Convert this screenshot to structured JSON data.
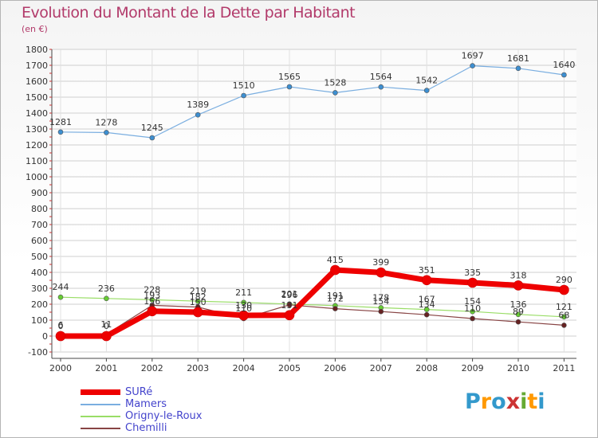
{
  "title": "Evolution du Montant de la Dette par Habitant",
  "subtitle": "(en €)",
  "logo": {
    "text": "Proxiti",
    "letters": [
      "P",
      "r",
      "o",
      "x",
      "i",
      "t",
      "i"
    ],
    "colors": [
      "#3399cc",
      "#ff9900",
      "#3399cc",
      "#cc3333",
      "#66aa33",
      "#ff9900",
      "#3399cc"
    ]
  },
  "chart_data": {
    "type": "line",
    "title": "Evolution du Montant de la Dette par Habitant",
    "subtitle": "(en €)",
    "xlabel": "",
    "ylabel": "",
    "x": [
      "2000",
      "2001",
      "2002",
      "2003",
      "2004",
      "2005",
      "2006",
      "2007",
      "2008",
      "2009",
      "2010",
      "2011"
    ],
    "ylim": [
      -100,
      1800
    ],
    "yticks": [
      -100,
      0,
      100,
      200,
      300,
      400,
      500,
      600,
      700,
      800,
      900,
      1000,
      1100,
      1200,
      1300,
      1400,
      1500,
      1600,
      1700,
      1800
    ],
    "grid": true,
    "legend_position": "bottom-left",
    "series": [
      {
        "name": "SURé",
        "color": "#ee0000",
        "width": 7,
        "marker": "#ee0000",
        "values": [
          0,
          0,
          156,
          150,
          130,
          131,
          415,
          399,
          351,
          335,
          318,
          290
        ],
        "labels": [
          "0",
          "0",
          "156",
          "150",
          "130",
          "131",
          "415",
          "399",
          "351",
          "335",
          "318",
          "290"
        ]
      },
      {
        "name": "Mamers",
        "color": "#7aaee0",
        "width": 1.2,
        "marker": "#3d8fd1",
        "values": [
          1281,
          1278,
          1245,
          1389,
          1510,
          1565,
          1528,
          1564,
          1542,
          1697,
          1681,
          1640
        ],
        "labels": [
          "1281",
          "1278",
          "1245",
          "1389",
          "1510",
          "1565",
          "1528",
          "1564",
          "1542",
          "1697",
          "1681",
          "1640"
        ]
      },
      {
        "name": "Origny-le-Roux",
        "color": "#99dd66",
        "width": 1.2,
        "marker": "#66cc33",
        "values": [
          244,
          236,
          228,
          219,
          211,
          201,
          191,
          178,
          167,
          154,
          136,
          121
        ],
        "labels": [
          "244",
          "236",
          "228",
          "219",
          "211",
          "201",
          "191",
          "178",
          "167",
          "154",
          "136",
          "121"
        ]
      },
      {
        "name": "Chemilli",
        "color": "#884444",
        "width": 1.2,
        "marker": "#662222",
        "values": [
          6,
          11,
          193,
          182,
          110,
          196,
          172,
          154,
          134,
          110,
          89,
          68
        ],
        "labels": [
          "6",
          "11",
          "193",
          "182",
          "110",
          "196",
          "172",
          "154",
          "134",
          "110",
          "89",
          "68"
        ]
      }
    ]
  }
}
